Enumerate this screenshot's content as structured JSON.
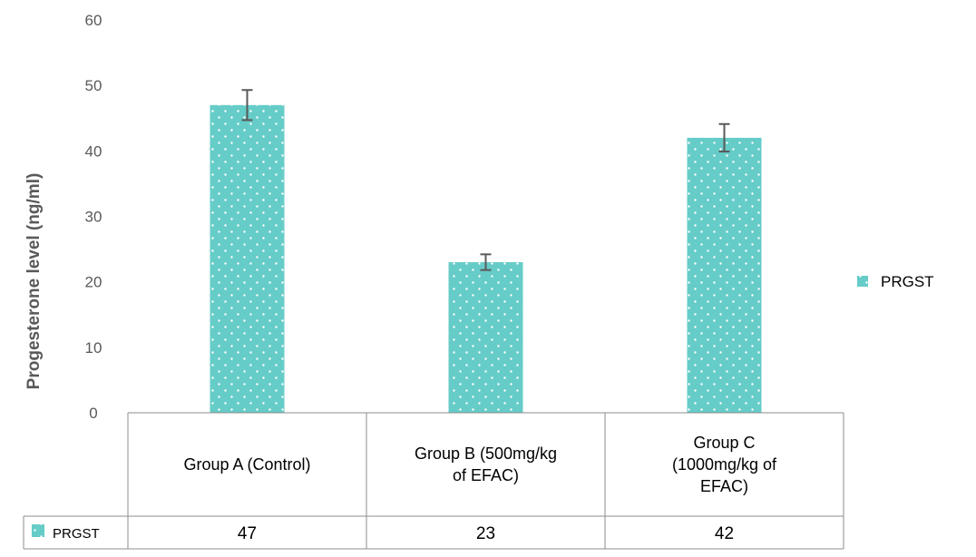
{
  "chart_data": {
    "type": "bar",
    "title": "",
    "xlabel": "",
    "ylabel": "Progesterone level (ng/ml)",
    "ylim": [
      0,
      60
    ],
    "yticks": [
      0,
      10,
      20,
      30,
      40,
      50,
      60
    ],
    "grid": false,
    "legend_position": "right",
    "categories": [
      [
        "Group A (Control)"
      ],
      [
        "Group B (500mg/kg",
        "of EFAC)"
      ],
      [
        "Group C",
        "(1000mg/kg of",
        "EFAC)"
      ]
    ],
    "series": [
      {
        "name": "PRGST",
        "values": [
          47,
          23,
          42
        ],
        "error": [
          2.3,
          1.2,
          2.1
        ],
        "color": "#66CCC8",
        "pattern": "white-dots"
      }
    ],
    "data_table": true
  }
}
